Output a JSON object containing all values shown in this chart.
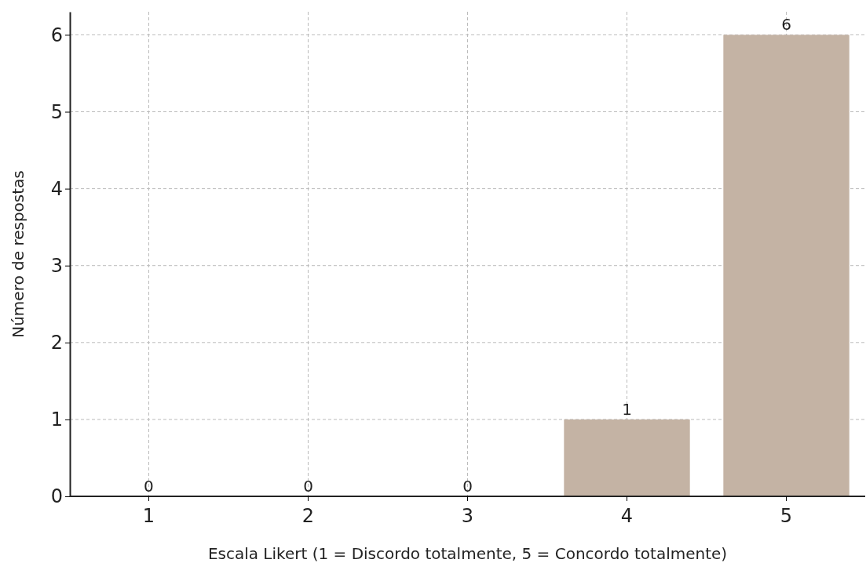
{
  "chart_data": {
    "type": "bar",
    "xlabel": "Escala Likert (1 = Discordo totalmente, 5 = Concordo totalmente)",
    "ylabel": "Número de respostas",
    "categories": [
      "1",
      "2",
      "3",
      "4",
      "5"
    ],
    "values": [
      0,
      0,
      0,
      1,
      6
    ],
    "color": "#c4b3a4",
    "ylim": [
      0,
      6.3
    ],
    "yticks": [
      0,
      1,
      2,
      3,
      4,
      5,
      6
    ],
    "grid": true,
    "data_labels": true
  }
}
